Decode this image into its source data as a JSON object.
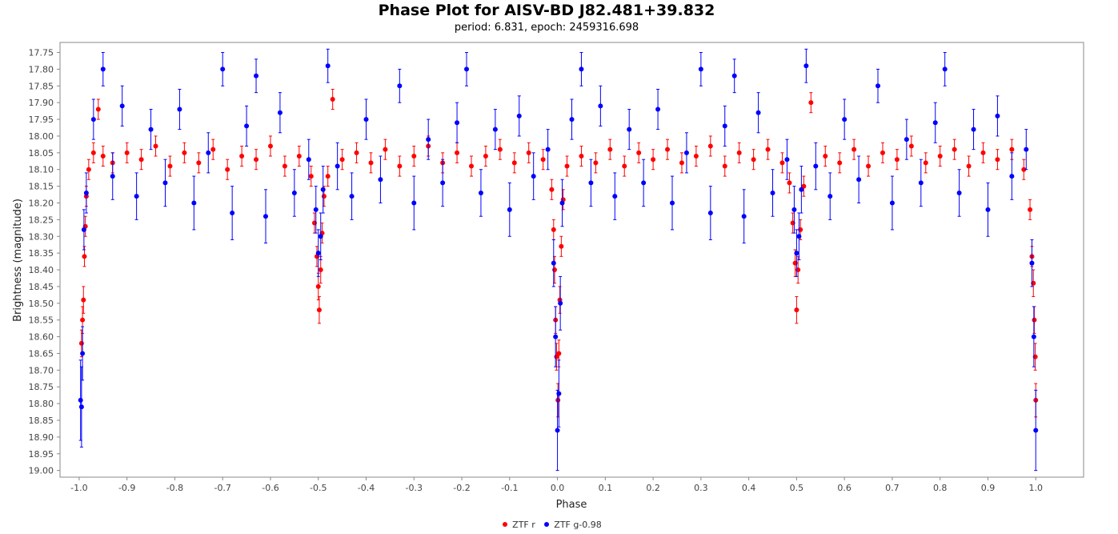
{
  "chart_data": {
    "type": "scatter",
    "title": "Phase Plot for AISV-BD J82.481+39.832",
    "subtitle": "period: 6.831, epoch: 2459316.698",
    "xlabel": "Phase",
    "ylabel": "Brightness (magnitude)",
    "xlim": [
      -1.04,
      1.1
    ],
    "ylim": [
      17.72,
      19.02
    ],
    "y_inverted": true,
    "grid": false,
    "legend_position": "bottom-center",
    "x_ticks": [
      "-1.0",
      "-0.9",
      "-0.8",
      "-0.7",
      "-0.6",
      "-0.5",
      "-0.4",
      "-0.3",
      "-0.2",
      "-0.1",
      "0.0",
      "0.1",
      "0.2",
      "0.3",
      "0.4",
      "0.5",
      "0.6",
      "0.7",
      "0.8",
      "0.9",
      "1.0"
    ],
    "y_ticks": [
      "17.75",
      "17.80",
      "17.85",
      "17.90",
      "17.95",
      "18.00",
      "18.05",
      "18.10",
      "18.15",
      "18.20",
      "18.25",
      "18.30",
      "18.35",
      "18.40",
      "18.45",
      "18.50",
      "18.55",
      "18.60",
      "18.65",
      "18.70",
      "18.75",
      "18.80",
      "18.85",
      "18.90",
      "18.95",
      "19.00"
    ],
    "series": [
      {
        "name": "ZTF r",
        "color": "#ff0000",
        "description_of_shape": "baseline ~18.06 with scatter ±0.07; deep primary eclipse at phase 0.0/±1.0 reaching ~18.8; secondary eclipse at phase ±0.5 reaching ~18.5",
        "points": [
          [
            -0.995,
            18.62,
            0.04
          ],
          [
            -0.993,
            18.55,
            0.04
          ],
          [
            -0.991,
            18.49,
            0.04
          ],
          [
            -0.989,
            18.36,
            0.03
          ],
          [
            -0.987,
            18.27,
            0.03
          ],
          [
            -0.985,
            18.18,
            0.03
          ],
          [
            -0.98,
            18.1,
            0.03
          ],
          [
            -0.97,
            18.05,
            0.03
          ],
          [
            -0.96,
            17.92,
            0.03
          ],
          [
            -0.95,
            18.06,
            0.03
          ],
          [
            -0.93,
            18.08,
            0.03
          ],
          [
            -0.9,
            18.05,
            0.03
          ],
          [
            -0.87,
            18.07,
            0.03
          ],
          [
            -0.84,
            18.03,
            0.03
          ],
          [
            -0.81,
            18.09,
            0.03
          ],
          [
            -0.78,
            18.05,
            0.03
          ],
          [
            -0.75,
            18.08,
            0.03
          ],
          [
            -0.72,
            18.04,
            0.03
          ],
          [
            -0.69,
            18.1,
            0.03
          ],
          [
            -0.66,
            18.06,
            0.03
          ],
          [
            -0.63,
            18.07,
            0.03
          ],
          [
            -0.6,
            18.03,
            0.03
          ],
          [
            -0.57,
            18.09,
            0.03
          ],
          [
            -0.54,
            18.06,
            0.03
          ],
          [
            -0.515,
            18.12,
            0.03
          ],
          [
            -0.508,
            18.26,
            0.03
          ],
          [
            -0.503,
            18.36,
            0.03
          ],
          [
            -0.5,
            18.45,
            0.04
          ],
          [
            -0.498,
            18.52,
            0.04
          ],
          [
            -0.495,
            18.4,
            0.04
          ],
          [
            -0.492,
            18.29,
            0.03
          ],
          [
            -0.488,
            18.18,
            0.03
          ],
          [
            -0.48,
            18.12,
            0.03
          ],
          [
            -0.47,
            17.89,
            0.03
          ],
          [
            -0.45,
            18.07,
            0.03
          ],
          [
            -0.42,
            18.05,
            0.03
          ],
          [
            -0.39,
            18.08,
            0.03
          ],
          [
            -0.36,
            18.04,
            0.03
          ],
          [
            -0.33,
            18.09,
            0.03
          ],
          [
            -0.3,
            18.06,
            0.03
          ],
          [
            -0.27,
            18.03,
            0.03
          ],
          [
            -0.24,
            18.08,
            0.03
          ],
          [
            -0.21,
            18.05,
            0.03
          ],
          [
            -0.18,
            18.09,
            0.03
          ],
          [
            -0.15,
            18.06,
            0.03
          ],
          [
            -0.12,
            18.04,
            0.03
          ],
          [
            -0.09,
            18.08,
            0.03
          ],
          [
            -0.06,
            18.05,
            0.03
          ],
          [
            -0.03,
            18.07,
            0.03
          ],
          [
            -0.012,
            18.16,
            0.03
          ],
          [
            -0.008,
            18.28,
            0.03
          ],
          [
            -0.006,
            18.4,
            0.04
          ],
          [
            -0.004,
            18.55,
            0.04
          ],
          [
            -0.002,
            18.66,
            0.04
          ],
          [
            0.001,
            18.79,
            0.05
          ],
          [
            0.003,
            18.65,
            0.04
          ],
          [
            0.005,
            18.49,
            0.04
          ],
          [
            0.008,
            18.33,
            0.03
          ],
          [
            0.012,
            18.19,
            0.03
          ],
          [
            0.02,
            18.09,
            0.03
          ],
          [
            0.05,
            18.06,
            0.03
          ],
          [
            0.08,
            18.08,
            0.03
          ],
          [
            0.11,
            18.04,
            0.03
          ],
          [
            0.14,
            18.09,
            0.03
          ],
          [
            0.17,
            18.05,
            0.03
          ],
          [
            0.2,
            18.07,
            0.03
          ],
          [
            0.23,
            18.04,
            0.03
          ],
          [
            0.26,
            18.08,
            0.03
          ],
          [
            0.29,
            18.06,
            0.03
          ],
          [
            0.32,
            18.03,
            0.03
          ],
          [
            0.35,
            18.09,
            0.03
          ],
          [
            0.38,
            18.05,
            0.03
          ],
          [
            0.41,
            18.07,
            0.03
          ],
          [
            0.44,
            18.04,
            0.03
          ],
          [
            0.47,
            18.08,
            0.03
          ],
          [
            0.485,
            18.14,
            0.03
          ],
          [
            0.492,
            18.26,
            0.03
          ],
          [
            0.497,
            18.38,
            0.04
          ],
          [
            0.5,
            18.52,
            0.04
          ],
          [
            0.503,
            18.4,
            0.04
          ],
          [
            0.508,
            18.28,
            0.03
          ],
          [
            0.515,
            18.15,
            0.03
          ],
          [
            0.53,
            17.9,
            0.03
          ],
          [
            0.56,
            18.06,
            0.03
          ],
          [
            0.59,
            18.08,
            0.03
          ],
          [
            0.62,
            18.04,
            0.03
          ],
          [
            0.65,
            18.09,
            0.03
          ],
          [
            0.68,
            18.05,
            0.03
          ],
          [
            0.71,
            18.07,
            0.03
          ],
          [
            0.74,
            18.03,
            0.03
          ],
          [
            0.77,
            18.08,
            0.03
          ],
          [
            0.8,
            18.06,
            0.03
          ],
          [
            0.83,
            18.04,
            0.03
          ],
          [
            0.86,
            18.09,
            0.03
          ],
          [
            0.89,
            18.05,
            0.03
          ],
          [
            0.92,
            18.07,
            0.03
          ],
          [
            0.95,
            18.04,
            0.03
          ],
          [
            0.975,
            18.1,
            0.03
          ],
          [
            0.988,
            18.22,
            0.03
          ],
          [
            0.992,
            18.36,
            0.03
          ],
          [
            0.995,
            18.44,
            0.04
          ],
          [
            0.997,
            18.55,
            0.04
          ],
          [
            0.999,
            18.66,
            0.04
          ],
          [
            1.0,
            18.79,
            0.05
          ]
        ]
      },
      {
        "name": "ZTF g-0.98",
        "color": "#0000ff",
        "description_of_shape": "baseline ~18.07 with larger scatter ±0.15; primary eclipse at phase 0.0/±1.0 reaching ~18.88; secondary eclipse at ±0.5 reaching ~18.35",
        "points": [
          [
            -0.997,
            18.79,
            0.12
          ],
          [
            -0.995,
            18.81,
            0.12
          ],
          [
            -0.993,
            18.65,
            0.08
          ],
          [
            -0.99,
            18.28,
            0.06
          ],
          [
            -0.985,
            18.17,
            0.06
          ],
          [
            -0.97,
            17.95,
            0.06
          ],
          [
            -0.95,
            17.8,
            0.05
          ],
          [
            -0.93,
            18.12,
            0.07
          ],
          [
            -0.91,
            17.91,
            0.06
          ],
          [
            -0.88,
            18.18,
            0.07
          ],
          [
            -0.85,
            17.98,
            0.06
          ],
          [
            -0.82,
            18.14,
            0.07
          ],
          [
            -0.79,
            17.92,
            0.06
          ],
          [
            -0.76,
            18.2,
            0.08
          ],
          [
            -0.73,
            18.05,
            0.06
          ],
          [
            -0.7,
            17.8,
            0.05
          ],
          [
            -0.68,
            18.23,
            0.08
          ],
          [
            -0.65,
            17.97,
            0.06
          ],
          [
            -0.63,
            17.82,
            0.05
          ],
          [
            -0.61,
            18.24,
            0.08
          ],
          [
            -0.58,
            17.93,
            0.06
          ],
          [
            -0.55,
            18.17,
            0.07
          ],
          [
            -0.52,
            18.07,
            0.06
          ],
          [
            -0.505,
            18.22,
            0.07
          ],
          [
            -0.5,
            18.35,
            0.07
          ],
          [
            -0.495,
            18.3,
            0.07
          ],
          [
            -0.49,
            18.16,
            0.07
          ],
          [
            -0.48,
            17.79,
            0.05
          ],
          [
            -0.46,
            18.09,
            0.07
          ],
          [
            -0.43,
            18.18,
            0.07
          ],
          [
            -0.4,
            17.95,
            0.06
          ],
          [
            -0.37,
            18.13,
            0.07
          ],
          [
            -0.33,
            17.85,
            0.05
          ],
          [
            -0.3,
            18.2,
            0.08
          ],
          [
            -0.27,
            18.01,
            0.06
          ],
          [
            -0.24,
            18.14,
            0.07
          ],
          [
            -0.21,
            17.96,
            0.06
          ],
          [
            -0.19,
            17.8,
            0.05
          ],
          [
            -0.16,
            18.17,
            0.07
          ],
          [
            -0.13,
            17.98,
            0.06
          ],
          [
            -0.1,
            18.22,
            0.08
          ],
          [
            -0.08,
            17.94,
            0.06
          ],
          [
            -0.05,
            18.12,
            0.07
          ],
          [
            -0.02,
            18.04,
            0.06
          ],
          [
            -0.008,
            18.38,
            0.07
          ],
          [
            -0.004,
            18.6,
            0.09
          ],
          [
            0.0,
            18.88,
            0.12
          ],
          [
            0.003,
            18.77,
            0.1
          ],
          [
            0.006,
            18.5,
            0.08
          ],
          [
            0.01,
            18.2,
            0.07
          ],
          [
            0.03,
            17.95,
            0.06
          ],
          [
            0.05,
            17.8,
            0.05
          ],
          [
            0.07,
            18.14,
            0.07
          ],
          [
            0.09,
            17.91,
            0.06
          ],
          [
            0.12,
            18.18,
            0.07
          ],
          [
            0.15,
            17.98,
            0.06
          ],
          [
            0.18,
            18.14,
            0.07
          ],
          [
            0.21,
            17.92,
            0.06
          ],
          [
            0.24,
            18.2,
            0.08
          ],
          [
            0.27,
            18.05,
            0.06
          ],
          [
            0.3,
            17.8,
            0.05
          ],
          [
            0.32,
            18.23,
            0.08
          ],
          [
            0.35,
            17.97,
            0.06
          ],
          [
            0.37,
            17.82,
            0.05
          ],
          [
            0.39,
            18.24,
            0.08
          ],
          [
            0.42,
            17.93,
            0.06
          ],
          [
            0.45,
            18.17,
            0.07
          ],
          [
            0.48,
            18.07,
            0.06
          ],
          [
            0.495,
            18.22,
            0.07
          ],
          [
            0.5,
            18.35,
            0.07
          ],
          [
            0.505,
            18.3,
            0.07
          ],
          [
            0.51,
            18.16,
            0.07
          ],
          [
            0.52,
            17.79,
            0.05
          ],
          [
            0.54,
            18.09,
            0.07
          ],
          [
            0.57,
            18.18,
            0.07
          ],
          [
            0.6,
            17.95,
            0.06
          ],
          [
            0.63,
            18.13,
            0.07
          ],
          [
            0.67,
            17.85,
            0.05
          ],
          [
            0.7,
            18.2,
            0.08
          ],
          [
            0.73,
            18.01,
            0.06
          ],
          [
            0.76,
            18.14,
            0.07
          ],
          [
            0.79,
            17.96,
            0.06
          ],
          [
            0.81,
            17.8,
            0.05
          ],
          [
            0.84,
            18.17,
            0.07
          ],
          [
            0.87,
            17.98,
            0.06
          ],
          [
            0.9,
            18.22,
            0.08
          ],
          [
            0.92,
            17.94,
            0.06
          ],
          [
            0.95,
            18.12,
            0.07
          ],
          [
            0.98,
            18.04,
            0.06
          ],
          [
            0.992,
            18.38,
            0.07
          ],
          [
            0.996,
            18.6,
            0.09
          ],
          [
            1.0,
            18.88,
            0.12
          ]
        ]
      }
    ]
  }
}
